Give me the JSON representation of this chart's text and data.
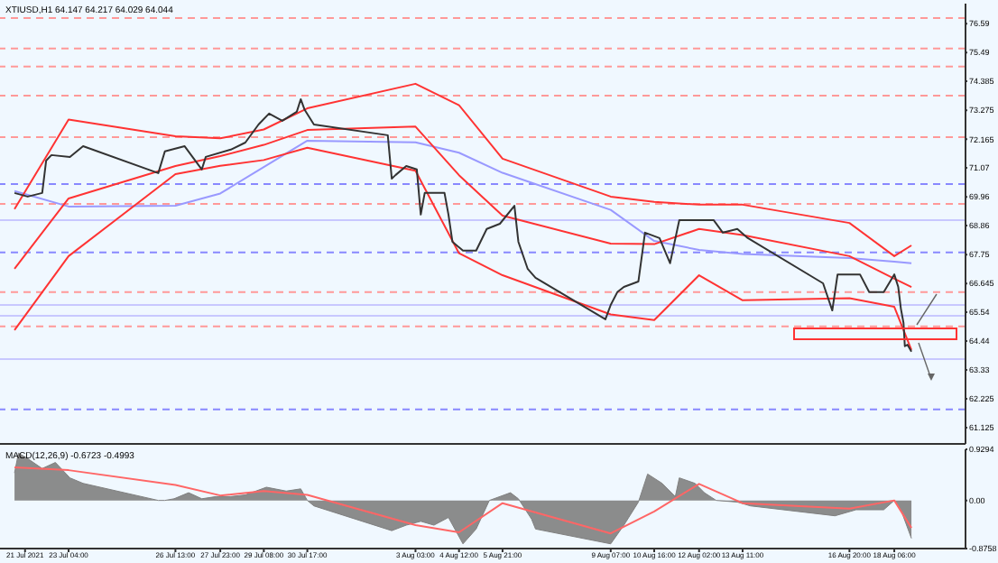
{
  "chart_data": [
    {
      "type": "line",
      "title": "XTIUSD,H1  64.147 64.217 64.029 64.044",
      "xlim": [
        "2021-07-21T00:00",
        "2021-08-20T12:00"
      ],
      "ylim": [
        60.5,
        77.36
      ],
      "yticks": [
        61.125,
        62.225,
        63.33,
        64.44,
        65.54,
        66.645,
        67.75,
        68.86,
        69.96,
        71.07,
        72.165,
        73.275,
        74.385,
        75.49,
        76.59
      ],
      "tick_labels": "y",
      "line_style": "solid",
      "marker": "none",
      "series": [
        {
          "color": "#9999ff",
          "x": [
            "2021-07-21T11:00",
            "2021-07-23T04:00",
            "2021-07-26T13:00",
            "2021-07-27T23:00",
            "2021-07-29T08:00",
            "2021-07-30T17:00",
            "2021-08-03T03:00",
            "2021-08-04T12:00",
            "2021-08-05T21:00",
            "2021-08-09T07:00",
            "2021-08-10T16:00",
            "2021-08-12T02:00",
            "2021-08-13T11:00",
            "2021-08-16T20:00",
            "2021-08-18T06:00",
            "2021-08-18T19:00"
          ],
          "values": [
            70.18,
            69.59,
            69.62,
            70.09,
            71.1,
            72.11,
            72.05,
            71.65,
            70.88,
            69.46,
            68.27,
            67.93,
            67.77,
            67.62,
            67.48,
            67.42
          ]
        },
        {
          "color": "#ff3333",
          "x": [
            "2021-07-21T11:00",
            "2021-07-23T04:00",
            "2021-07-26T13:00",
            "2021-07-27T23:00",
            "2021-07-29T08:00",
            "2021-07-30T17:00",
            "2021-08-03T03:00",
            "2021-08-04T12:00",
            "2021-08-05T21:00",
            "2021-08-09T07:00",
            "2021-08-10T16:00",
            "2021-08-12T02:00",
            "2021-08-13T11:00",
            "2021-08-16T20:00",
            "2021-08-18T06:00",
            "2021-08-18T19:00"
          ],
          "values": [
            69.49,
            72.92,
            72.28,
            72.2,
            72.54,
            73.35,
            74.29,
            73.47,
            71.42,
            69.97,
            69.77,
            69.66,
            69.66,
            68.96,
            67.69,
            68.1
          ]
        },
        {
          "color": "#ff3333",
          "x": [
            "2021-07-21T11:00",
            "2021-07-23T04:00",
            "2021-07-26T13:00",
            "2021-07-27T23:00",
            "2021-07-29T08:00",
            "2021-07-30T17:00",
            "2021-08-03T03:00",
            "2021-08-04T12:00",
            "2021-08-05T21:00",
            "2021-08-09T07:00",
            "2021-08-10T16:00",
            "2021-08-12T02:00",
            "2021-08-13T11:00",
            "2021-08-16T20:00",
            "2021-08-18T06:00",
            "2021-08-18T19:00"
          ],
          "values": [
            67.21,
            69.9,
            71.14,
            71.52,
            71.95,
            72.52,
            72.65,
            70.79,
            69.24,
            68.17,
            68.15,
            68.73,
            68.5,
            67.69,
            66.83,
            66.51
          ]
        },
        {
          "color": "#ff3333",
          "x": [
            "2021-07-21T11:00",
            "2021-07-23T04:00",
            "2021-07-26T13:00",
            "2021-07-27T23:00",
            "2021-07-29T08:00",
            "2021-07-30T17:00",
            "2021-08-03T03:00",
            "2021-08-04T12:00",
            "2021-08-05T21:00",
            "2021-08-09T07:00",
            "2021-08-10T16:00",
            "2021-08-12T02:00",
            "2021-08-13T11:00",
            "2021-08-16T20:00",
            "2021-08-18T06:00",
            "2021-08-18T19:00"
          ],
          "values": [
            64.86,
            67.69,
            70.83,
            71.15,
            71.37,
            71.84,
            70.96,
            67.8,
            66.96,
            65.46,
            65.24,
            66.96,
            66.0,
            66.08,
            65.75,
            64.1
          ]
        },
        {
          "color": "#333333",
          "x": [
            "2021-07-21T11:00",
            "2021-07-21T21:00",
            "2021-07-22T08:00",
            "2021-07-22T11:00",
            "2021-07-22T15:00",
            "2021-07-23T05:00",
            "2021-07-23T15:00",
            "2021-07-26T00:00",
            "2021-07-26T05:00",
            "2021-07-26T20:00",
            "2021-07-27T09:00",
            "2021-07-27T12:00",
            "2021-07-28T07:00",
            "2021-07-28T18:00",
            "2021-07-29T04:00",
            "2021-07-29T12:00",
            "2021-07-29T22:00",
            "2021-07-30T09:00",
            "2021-07-30T12:00",
            "2021-07-30T15:00",
            "2021-07-30T22:00",
            "2021-08-02T06:00",
            "2021-08-02T09:00",
            "2021-08-02T12:00",
            "2021-08-02T20:00",
            "2021-08-03T04:00",
            "2021-08-03T07:00",
            "2021-08-03T10:00",
            "2021-08-04T01:00",
            "2021-08-04T04:00",
            "2021-08-04T07:00",
            "2021-08-04T15:00",
            "2021-08-05T01:00",
            "2021-08-05T09:00",
            "2021-08-05T19:00",
            "2021-08-06T06:00",
            "2021-08-06T09:00",
            "2021-08-06T16:00",
            "2021-08-06T22:00",
            "2021-08-09T03:00",
            "2021-08-09T07:00",
            "2021-08-09T12:00",
            "2021-08-09T17:00",
            "2021-08-10T04:00",
            "2021-08-10T09:00",
            "2021-08-10T20:00",
            "2021-08-11T04:00",
            "2021-08-11T11:00",
            "2021-08-12T13:00",
            "2021-08-12T20:00",
            "2021-08-13T07:00",
            "2021-08-13T15:00",
            "2021-08-16T00:00",
            "2021-08-16T07:00",
            "2021-08-16T11:00",
            "2021-08-17T04:00",
            "2021-08-17T11:00",
            "2021-08-17T22:00",
            "2021-08-18T06:00",
            "2021-08-18T09:00",
            "2021-08-18T11:00",
            "2021-08-18T13:00",
            "2021-08-18T14:00",
            "2021-08-18T16:00",
            "2021-08-18T19:00"
          ],
          "values": [
            70.11,
            69.97,
            70.11,
            71.35,
            71.56,
            71.49,
            71.9,
            70.87,
            71.7,
            71.9,
            71.01,
            71.49,
            71.77,
            72.04,
            72.73,
            73.15,
            72.87,
            73.22,
            73.7,
            73.29,
            72.73,
            72.32,
            70.66,
            70.8,
            71.14,
            71.01,
            69.28,
            70.11,
            70.11,
            69.28,
            68.24,
            67.9,
            67.9,
            68.73,
            68.93,
            69.62,
            68.24,
            67.21,
            66.86,
            65.27,
            65.82,
            66.31,
            66.51,
            66.72,
            68.59,
            68.38,
            67.42,
            69.07,
            69.07,
            68.59,
            68.73,
            68.38,
            66.65,
            65.61,
            66.99,
            66.99,
            66.31,
            66.31,
            66.99,
            66.51,
            65.68,
            65.13,
            64.24,
            64.3,
            64.03
          ]
        }
      ],
      "ref_lines": [
        {
          "axis": "y",
          "value": 76.81,
          "color": "#ff9999",
          "line_style": "dashed"
        },
        {
          "axis": "y",
          "value": 75.64,
          "color": "#ff9999",
          "line_style": "dashed"
        },
        {
          "axis": "y",
          "value": 74.95,
          "color": "#ff9999",
          "line_style": "dashed"
        },
        {
          "axis": "y",
          "value": 73.84,
          "color": "#ff9999",
          "line_style": "dashed"
        },
        {
          "axis": "y",
          "value": 72.25,
          "color": "#ff9999",
          "line_style": "dashed"
        },
        {
          "axis": "y",
          "value": 69.69,
          "color": "#ff9999",
          "line_style": "dashed"
        },
        {
          "axis": "y",
          "value": 66.31,
          "color": "#ff9999",
          "line_style": "dashed"
        },
        {
          "axis": "y",
          "value": 65.0,
          "color": "#ff9999",
          "line_style": "dashed"
        },
        {
          "axis": "y",
          "value": 70.45,
          "color": "#8888ff",
          "line_style": "dashed"
        },
        {
          "axis": "y",
          "value": 67.83,
          "color": "#8888ff",
          "line_style": "dashed"
        },
        {
          "axis": "y",
          "value": 61.82,
          "color": "#8888ff",
          "line_style": "dashed"
        },
        {
          "axis": "y",
          "value": 69.07,
          "color": "#c8c8ff",
          "line_style": "solid"
        },
        {
          "axis": "y",
          "value": 65.82,
          "color": "#c8c8ff",
          "line_style": "solid"
        },
        {
          "axis": "y",
          "value": 65.41,
          "color": "#c8c8ff",
          "line_style": "solid"
        },
        {
          "axis": "y",
          "value": 63.75,
          "color": "#c8c8ff",
          "line_style": "solid"
        }
      ]
    },
    {
      "type": "area",
      "title": "MACD(12,26,9) -0.6723 -0.4993",
      "xlim": [
        "2021-07-21T00:00",
        "2021-08-20T12:00"
      ],
      "ylim": [
        -0.8758,
        0.9294
      ],
      "yticks": [
        -0.8758,
        {
          "value": 0,
          "label": "0.00"
        },
        0.9294
      ],
      "xticks": [
        {
          "value": "2021-07-21T19:00",
          "label": "21 Jul 2021"
        },
        {
          "value": "2021-07-23T04:00",
          "label": "23 Jul 04:00"
        },
        {
          "value": "2021-07-26T13:00",
          "label": "26 Jul 13:00"
        },
        {
          "value": "2021-07-27T23:00",
          "label": "27 Jul 23:00"
        },
        {
          "value": "2021-07-29T08:00",
          "label": "29 Jul 08:00"
        },
        {
          "value": "2021-07-30T17:00",
          "label": "30 Jul 17:00"
        },
        {
          "value": "2021-08-03T03:00",
          "label": "3 Aug 03:00"
        },
        {
          "value": "2021-08-04T12:00",
          "label": "4 Aug 12:00"
        },
        {
          "value": "2021-08-05T21:00",
          "label": "5 Aug 21:00"
        },
        {
          "value": "2021-08-09T07:00",
          "label": "9 Aug 07:00"
        },
        {
          "value": "2021-08-10T16:00",
          "label": "10 Aug 16:00"
        },
        {
          "value": "2021-08-12T02:00",
          "label": "12 Aug 02:00"
        },
        {
          "value": "2021-08-13T11:00",
          "label": "13 Aug 11:00"
        },
        {
          "value": "2021-08-16T20:00",
          "label": "16 Aug 20:00"
        },
        {
          "value": "2021-08-18T06:00",
          "label": "18 Aug 06:00"
        }
      ],
      "series": [
        {
          "color": "#808080",
          "x": [
            "2021-07-21T11:00",
            "2021-07-21T14:00",
            "2021-07-21T21:00",
            "2021-07-22T08:00",
            "2021-07-22T18:00",
            "2021-07-23T05:00",
            "2021-07-23T15:00",
            "2021-07-26T00:00",
            "2021-07-26T05:00",
            "2021-07-26T12:00",
            "2021-07-26T23:00",
            "2021-07-27T09:00",
            "2021-07-27T20:00",
            "2021-07-28T07:00",
            "2021-07-28T18:00",
            "2021-07-29T10:00",
            "2021-07-30T01:00",
            "2021-07-30T12:00",
            "2021-07-30T17:00",
            "2021-07-30T22:00",
            "2021-08-02T09:00",
            "2021-08-02T20:00",
            "2021-08-03T07:00",
            "2021-08-03T17:00",
            "2021-08-04T04:00",
            "2021-08-04T15:00",
            "2021-08-05T01:00",
            "2021-08-05T11:00",
            "2021-08-06T03:00",
            "2021-08-06T09:00",
            "2021-08-06T19:00",
            "2021-08-06T22:00",
            "2021-08-09T07:00",
            "2021-08-09T17:00",
            "2021-08-10T04:00",
            "2021-08-10T11:00",
            "2021-08-10T22:00",
            "2021-08-11T08:00",
            "2021-08-11T11:00",
            "2021-08-11T23:00",
            "2021-08-12T06:00",
            "2021-08-12T15:00",
            "2021-08-13T07:00",
            "2021-08-13T17:00",
            "2021-08-16T09:00",
            "2021-08-17T01:00",
            "2021-08-17T22:00",
            "2021-08-18T06:00",
            "2021-08-18T11:00",
            "2021-08-18T19:00"
          ],
          "values": [
            0.5,
            0.86,
            0.76,
            0.58,
            0.69,
            0.41,
            0.31,
            0,
            0,
            0.03,
            0.14,
            0.03,
            0.07,
            0.07,
            0.1,
            0.24,
            0.17,
            0.21,
            0,
            -0.1,
            -0.55,
            -0.45,
            -0.38,
            -0.45,
            -0.31,
            -0.79,
            -0.52,
            0,
            0.14,
            0.03,
            -0.34,
            -0.52,
            -0.79,
            -0.45,
            -0.03,
            0.48,
            0.31,
            0.07,
            0.41,
            0.31,
            0.14,
            0,
            -0.03,
            -0.1,
            -0.28,
            -0.17,
            -0.17,
            0,
            -0.17,
            -0.69
          ]
        },
        {
          "type": "line",
          "color": "#ff6666",
          "line_style": "solid",
          "x": [
            "2021-07-21T11:00",
            "2021-07-23T04:00",
            "2021-07-26T13:00",
            "2021-07-27T23:00",
            "2021-07-29T08:00",
            "2021-07-30T17:00",
            "2021-08-03T03:00",
            "2021-08-04T12:00",
            "2021-08-05T21:00",
            "2021-08-09T07:00",
            "2021-08-10T16:00",
            "2021-08-12T02:00",
            "2021-08-13T11:00",
            "2021-08-16T20:00",
            "2021-08-18T06:00",
            "2021-08-18T19:00"
          ],
          "values": [
            0.6,
            0.55,
            0.28,
            0.09,
            0.17,
            0.1,
            -0.45,
            -0.58,
            -0.05,
            -0.6,
            -0.2,
            0.3,
            -0.05,
            -0.15,
            0,
            -0.5
          ]
        }
      ]
    }
  ]
}
